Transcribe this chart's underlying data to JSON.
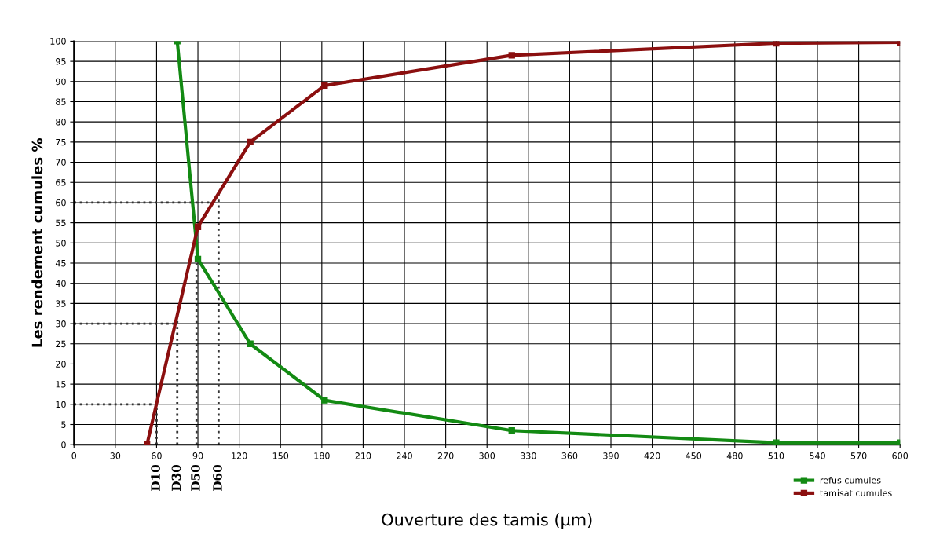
{
  "chart_data": {
    "type": "line",
    "xlabel": "Ouverture des tamis (μm)",
    "ylabel": "Les rendement cumules %",
    "series": [
      {
        "name": "refus cumules",
        "color": "#138a13",
        "x": [
          75,
          90,
          128,
          182,
          318,
          510,
          600
        ],
        "values": [
          100,
          46,
          25,
          11,
          3.5,
          0.5,
          0.5
        ]
      },
      {
        "name": "tamisat cumules",
        "color": "#8b0f0f",
        "x": [
          53,
          90,
          128,
          182,
          318,
          510,
          600
        ],
        "values": [
          0,
          54,
          75,
          89,
          96.5,
          99.5,
          99.7
        ]
      }
    ],
    "xlim": [
      0,
      600
    ],
    "ylim": [
      0,
      100
    ],
    "xticks": [
      0,
      30,
      60,
      90,
      120,
      150,
      180,
      210,
      240,
      270,
      300,
      330,
      360,
      390,
      420,
      450,
      480,
      510,
      540,
      570,
      600
    ],
    "yticks": [
      0,
      5,
      10,
      15,
      20,
      25,
      30,
      35,
      40,
      45,
      50,
      55,
      60,
      65,
      70,
      75,
      80,
      85,
      90,
      95,
      100
    ],
    "ref_lines": [
      {
        "axis": "x",
        "value": 60,
        "label": "D10",
        "line_style": "dotted",
        "color": "#333333"
      },
      {
        "axis": "x",
        "value": 75,
        "label": "D30",
        "line_style": "dotted",
        "color": "#333333"
      },
      {
        "axis": "x",
        "value": 89,
        "label": "D50",
        "line_style": "dotted",
        "color": "#333333"
      },
      {
        "axis": "x",
        "value": 105,
        "label": "D60",
        "line_style": "dotted",
        "color": "#333333"
      },
      {
        "axis": "y",
        "value": 10,
        "line_style": "dotted",
        "color": "#333333"
      },
      {
        "axis": "y",
        "value": 30,
        "line_style": "dotted",
        "color": "#333333"
      },
      {
        "axis": "y",
        "value": 60,
        "line_style": "dotted",
        "color": "#333333"
      }
    ],
    "grid": true,
    "legend": "bottom right",
    "marker": "square",
    "line_style": "solid"
  }
}
